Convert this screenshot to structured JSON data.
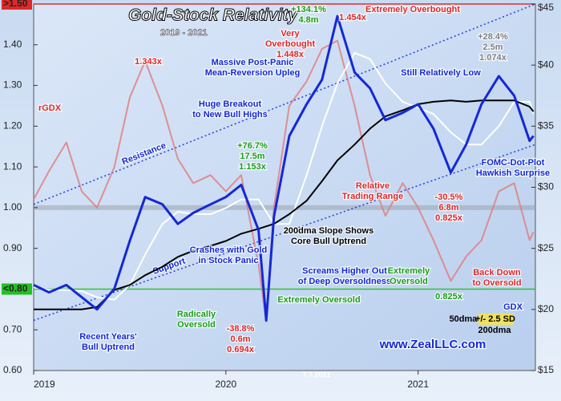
{
  "chart_data": {
    "type": "line",
    "title": "Gold-Stock Relativity",
    "subtitle": "2019 - 2021",
    "x": [
      2019.0,
      2019.08,
      2019.17,
      2019.25,
      2019.33,
      2019.42,
      2019.5,
      2019.58,
      2019.67,
      2019.75,
      2019.83,
      2019.92,
      2020.0,
      2020.08,
      2020.17,
      2020.21,
      2020.25,
      2020.33,
      2020.42,
      2020.5,
      2020.58,
      2020.67,
      2020.75,
      2020.83,
      2020.92,
      2021.0,
      2021.08,
      2021.17,
      2021.25,
      2021.33,
      2021.42,
      2021.5,
      2021.58,
      2021.6
    ],
    "xlim": [
      2019,
      2021.61
    ],
    "xticks": [
      2019,
      2020,
      2021
    ],
    "ylim": [
      0.6,
      1.5
    ],
    "yticks": [
      {
        "value": 0.6,
        "label": "0.60"
      },
      {
        "value": 0.7,
        "label": "0.70"
      },
      {
        "value": 0.9,
        "label": "0.90"
      },
      {
        "value": 1.0,
        "label": "1.00"
      },
      {
        "value": 1.1,
        "label": "1.10"
      },
      {
        "value": 1.2,
        "label": "1.20"
      },
      {
        "value": 1.3,
        "label": "1.30"
      },
      {
        "value": 1.4,
        "label": "1.40"
      }
    ],
    "y2lim": [
      15,
      45
    ],
    "y2ticks": [
      {
        "value": 15,
        "label": "$15"
      },
      {
        "value": 20,
        "label": "$20"
      },
      {
        "value": 25,
        "label": "$25"
      },
      {
        "value": 30,
        "label": "$30"
      },
      {
        "value": 35,
        "label": "$35"
      },
      {
        "value": 40,
        "label": "$40"
      },
      {
        "value": 45,
        "label": "$45"
      }
    ],
    "reference_lines": [
      {
        "value": 1.5,
        "label": ">1.50",
        "color": "#e02828"
      },
      {
        "value": 0.8,
        "label": "<0.80",
        "color": "#22c022"
      },
      {
        "value": 1.0,
        "color": "#9aa0a8"
      }
    ],
    "series": [
      {
        "name": "rGDX",
        "color": "#e07a7a",
        "values": [
          1.02,
          1.09,
          1.16,
          1.04,
          1.0,
          1.1,
          1.27,
          1.36,
          1.25,
          1.12,
          1.06,
          1.08,
          1.04,
          1.08,
          0.86,
          0.72,
          1.0,
          1.25,
          1.31,
          1.39,
          1.41,
          1.25,
          1.08,
          0.98,
          1.06,
          1.0,
          0.92,
          0.82,
          0.88,
          0.92,
          1.04,
          1.06,
          0.92,
          0.94
        ]
      },
      {
        "name": "50dma",
        "color": "#ffffff",
        "axis": "y2",
        "values": [
          21.8,
          21.6,
          21.6,
          21.5,
          21.0,
          20.8,
          22.0,
          24.5,
          27.0,
          28.0,
          27.8,
          27.8,
          28.3,
          29.0,
          29.0,
          28.0,
          27.0,
          27.0,
          31.0,
          35.0,
          38.5,
          41.0,
          40.5,
          38.5,
          37.0,
          36.5,
          36.0,
          34.5,
          33.5,
          33.5,
          35.0,
          37.0,
          37.0,
          36.0
        ]
      },
      {
        "name": "200dma",
        "color": "#000000",
        "axis": "y2",
        "values": [
          20.0,
          20.0,
          20.0,
          20.0,
          20.2,
          21.6,
          22.0,
          22.8,
          23.5,
          24.3,
          24.8,
          25.2,
          25.6,
          26.2,
          26.6,
          26.8,
          27.0,
          27.8,
          28.9,
          30.5,
          32.2,
          33.5,
          34.8,
          35.8,
          36.3,
          36.8,
          37.0,
          37.1,
          37.0,
          37.1,
          37.1,
          37.1,
          36.6,
          36.2
        ]
      },
      {
        "name": "GDX",
        "color": "#1428d8",
        "axis": "y2",
        "values": [
          22.0,
          21.4,
          22.0,
          21.0,
          20.0,
          21.7,
          25.6,
          29.2,
          28.6,
          27.0,
          27.9,
          28.6,
          29.2,
          30.2,
          26.5,
          19.1,
          27.6,
          34.2,
          36.8,
          38.8,
          44.0,
          39.4,
          38.1,
          35.5,
          36.1,
          36.8,
          34.8,
          31.2,
          33.5,
          36.8,
          39.1,
          37.5,
          33.8,
          34.2
        ]
      }
    ],
    "trendlines": [
      {
        "label": "Resistance",
        "x": [
          2019,
          2021.61
        ],
        "y2": [
          28.6,
          45
        ]
      },
      {
        "label": "Support",
        "x": [
          2019,
          2021.61
        ],
        "y2": [
          19.1,
          33.5
        ]
      }
    ],
    "legend": [
      "50dma",
      "+/- 2.5 SD",
      "200dma"
    ],
    "annotations": [
      {
        "lines": [
          "Very",
          "Overbought",
          "1.448x"
        ],
        "color": "#e02828"
      },
      {
        "lines": [
          "+134.1%",
          "4.8m"
        ],
        "color": "#18a018"
      },
      {
        "lines": [
          "Extremely Overbought"
        ],
        "color": "#e02828"
      },
      {
        "lines": [
          "1.454x"
        ],
        "color": "#e02828"
      },
      {
        "lines": [
          "1.343x"
        ],
        "color": "#e02828"
      },
      {
        "lines": [
          "rGDX"
        ],
        "color": "#e02828"
      },
      {
        "lines": [
          "Massive Post-Panic",
          "Mean-Reversion Upleg"
        ],
        "color": "#1428d8"
      },
      {
        "lines": [
          "Huge Breakout",
          "to New Bull Highs"
        ],
        "color": "#1428d8"
      },
      {
        "lines": [
          "Still Relatively Low"
        ],
        "color": "#1428d8"
      },
      {
        "lines": [
          "+28.4%",
          "2.5m",
          "1.074x"
        ],
        "color": "#808080"
      },
      {
        "lines": [
          "+76.7%",
          "17.5m",
          "1.153x"
        ],
        "color": "#18a018"
      },
      {
        "lines": [
          "Relative",
          "Trading Range"
        ],
        "color": "#e02828"
      },
      {
        "lines": [
          "FOMC-Dot-Plot",
          "Hawkish Surprise"
        ],
        "color": "#1428d8"
      },
      {
        "lines": [
          "-30.5%",
          "6.8m",
          "0.825x"
        ],
        "color": "#e02828"
      },
      {
        "lines": [
          "200dma Slope Shows",
          "Core Bull Uptrend"
        ],
        "color": "#000000"
      },
      {
        "lines": [
          "Crashes with Gold",
          "in Stock Panic"
        ],
        "color": "#1428d8"
      },
      {
        "lines": [
          "Screams Higher Out",
          "of Deep Oversoldness"
        ],
        "color": "#1428d8"
      },
      {
        "lines": [
          "Extremely",
          "Oversold"
        ],
        "color": "#18a018"
      },
      {
        "lines": [
          "Back Down",
          "to Oversold"
        ],
        "color": "#e02828"
      },
      {
        "lines": [
          "Extremely Oversold"
        ],
        "color": "#18a018"
      },
      {
        "lines": [
          "0.825x"
        ],
        "color": "#18a018"
      },
      {
        "lines": [
          "GDX"
        ],
        "color": "#1428d8"
      },
      {
        "lines": [
          "Radically",
          "Oversold"
        ],
        "color": "#18a018"
      },
      {
        "lines": [
          "-38.8%",
          "0.6m",
          "0.694x"
        ],
        "color": "#e02828"
      },
      {
        "lines": [
          "Recent Years'",
          "Bull Uptrend"
        ],
        "color": "#1428d8"
      },
      {
        "lines": [
          "7.7.2021"
        ],
        "color": "#ffffff"
      },
      {
        "lines": [
          "www.ZealLLC.com"
        ],
        "color": "#1428d8"
      }
    ]
  }
}
